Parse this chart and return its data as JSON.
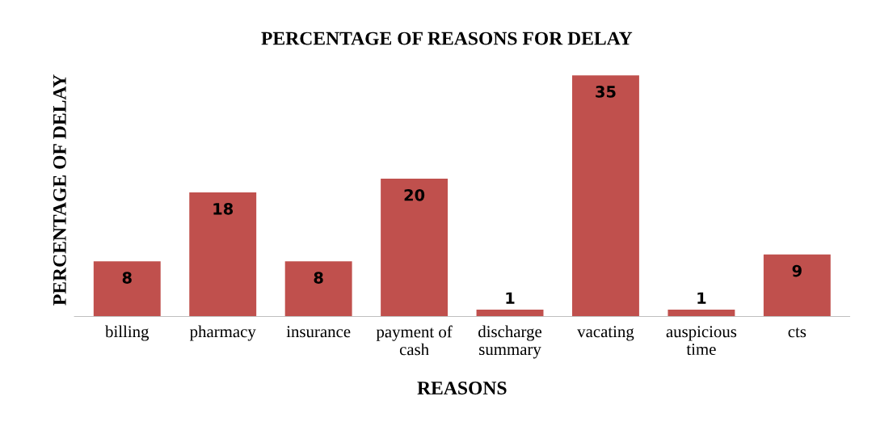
{
  "chart_data": {
    "type": "bar",
    "title": "PERCENTAGE OF REASONS FOR DELAY",
    "xlabel": "REASONS",
    "ylabel": "PERCENTAGE OF DELAY",
    "categories": [
      "billing",
      "pharmacy",
      "insurance",
      "payment of\ncash",
      "discharge\nsummary",
      "vacating",
      "auspicious\ntime",
      "cts"
    ],
    "values": [
      8,
      18,
      8,
      20,
      1,
      35,
      1,
      9
    ],
    "color": "#c0504d",
    "data_labels": true,
    "tick_labels": "x"
  }
}
